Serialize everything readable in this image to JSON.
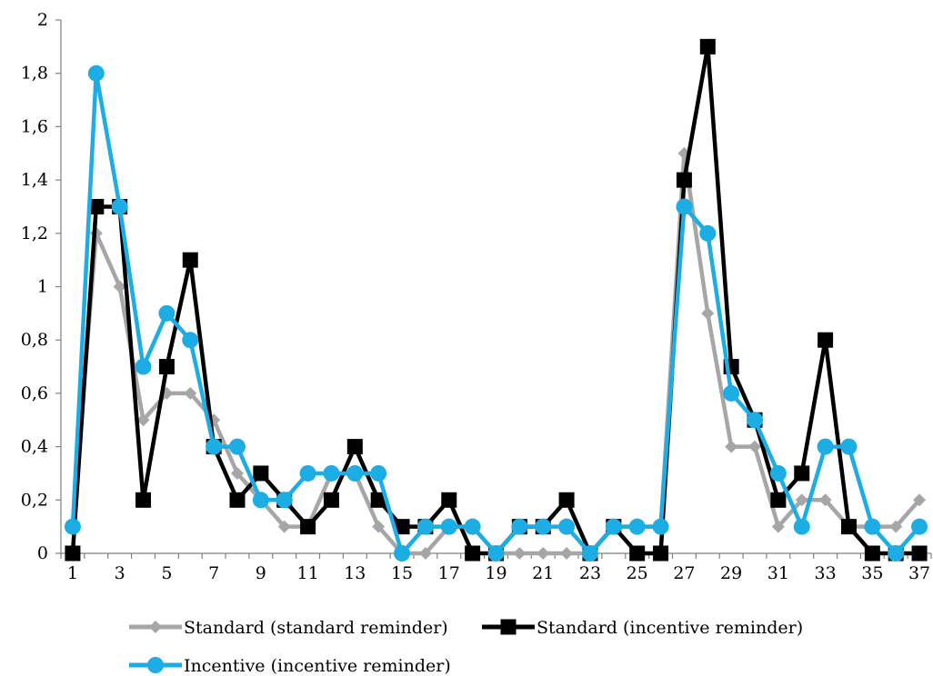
{
  "chart_data": {
    "type": "line",
    "title": "",
    "xlabel": "",
    "ylabel": "",
    "x": [
      1,
      2,
      3,
      4,
      5,
      6,
      7,
      8,
      9,
      10,
      11,
      12,
      13,
      14,
      15,
      16,
      17,
      18,
      19,
      20,
      21,
      22,
      23,
      24,
      25,
      26,
      27,
      28,
      29,
      30,
      31,
      32,
      33,
      34,
      35,
      36,
      37
    ],
    "x_tick_labels": [
      "1",
      "3",
      "5",
      "7",
      "9",
      "11",
      "13",
      "15",
      "17",
      "19",
      "21",
      "23",
      "25",
      "27",
      "29",
      "31",
      "33",
      "35",
      "37"
    ],
    "y_tick_labels": [
      "0",
      "0,2",
      "0,4",
      "0,6",
      "0,8",
      "1",
      "1,2",
      "1,4",
      "1,6",
      "1,8",
      "2"
    ],
    "ylim": [
      0,
      2
    ],
    "grid": false,
    "legend_position": "bottom",
    "series": [
      {
        "name": "Standard (standard reminder)",
        "color": "#a6a6a6",
        "marker": "diamond",
        "values": [
          0.1,
          1.2,
          1.0,
          0.5,
          0.6,
          0.6,
          0.5,
          0.3,
          0.2,
          0.1,
          0.1,
          0.3,
          0.3,
          0.1,
          0.0,
          0.0,
          0.1,
          0.1,
          0.0,
          0.0,
          0.0,
          0.0,
          0.0,
          0.1,
          0.1,
          0.1,
          1.5,
          0.9,
          0.4,
          0.4,
          0.1,
          0.2,
          0.2,
          0.1,
          0.1,
          0.1,
          0.2
        ]
      },
      {
        "name": "Standard (incentive reminder)",
        "color": "#000000",
        "marker": "square",
        "values": [
          0.0,
          1.3,
          1.3,
          0.2,
          0.7,
          1.1,
          0.4,
          0.2,
          0.3,
          0.2,
          0.1,
          0.2,
          0.4,
          0.2,
          0.1,
          0.1,
          0.2,
          0.0,
          0.0,
          0.1,
          0.1,
          0.2,
          0.0,
          0.1,
          0.0,
          0.0,
          1.4,
          1.9,
          0.7,
          0.5,
          0.2,
          0.3,
          0.8,
          0.1,
          0.0,
          0.0,
          0.0
        ]
      },
      {
        "name": "Incentive (incentive reminder)",
        "color": "#1cade4",
        "marker": "circle",
        "values": [
          0.1,
          1.8,
          1.3,
          0.7,
          0.9,
          0.8,
          0.4,
          0.4,
          0.2,
          0.2,
          0.3,
          0.3,
          0.3,
          0.3,
          0.0,
          0.1,
          0.1,
          0.1,
          0.0,
          0.1,
          0.1,
          0.1,
          0.0,
          0.1,
          0.1,
          0.1,
          1.3,
          1.2,
          0.6,
          0.5,
          0.3,
          0.1,
          0.4,
          0.4,
          0.1,
          0.0,
          0.1
        ]
      }
    ]
  }
}
